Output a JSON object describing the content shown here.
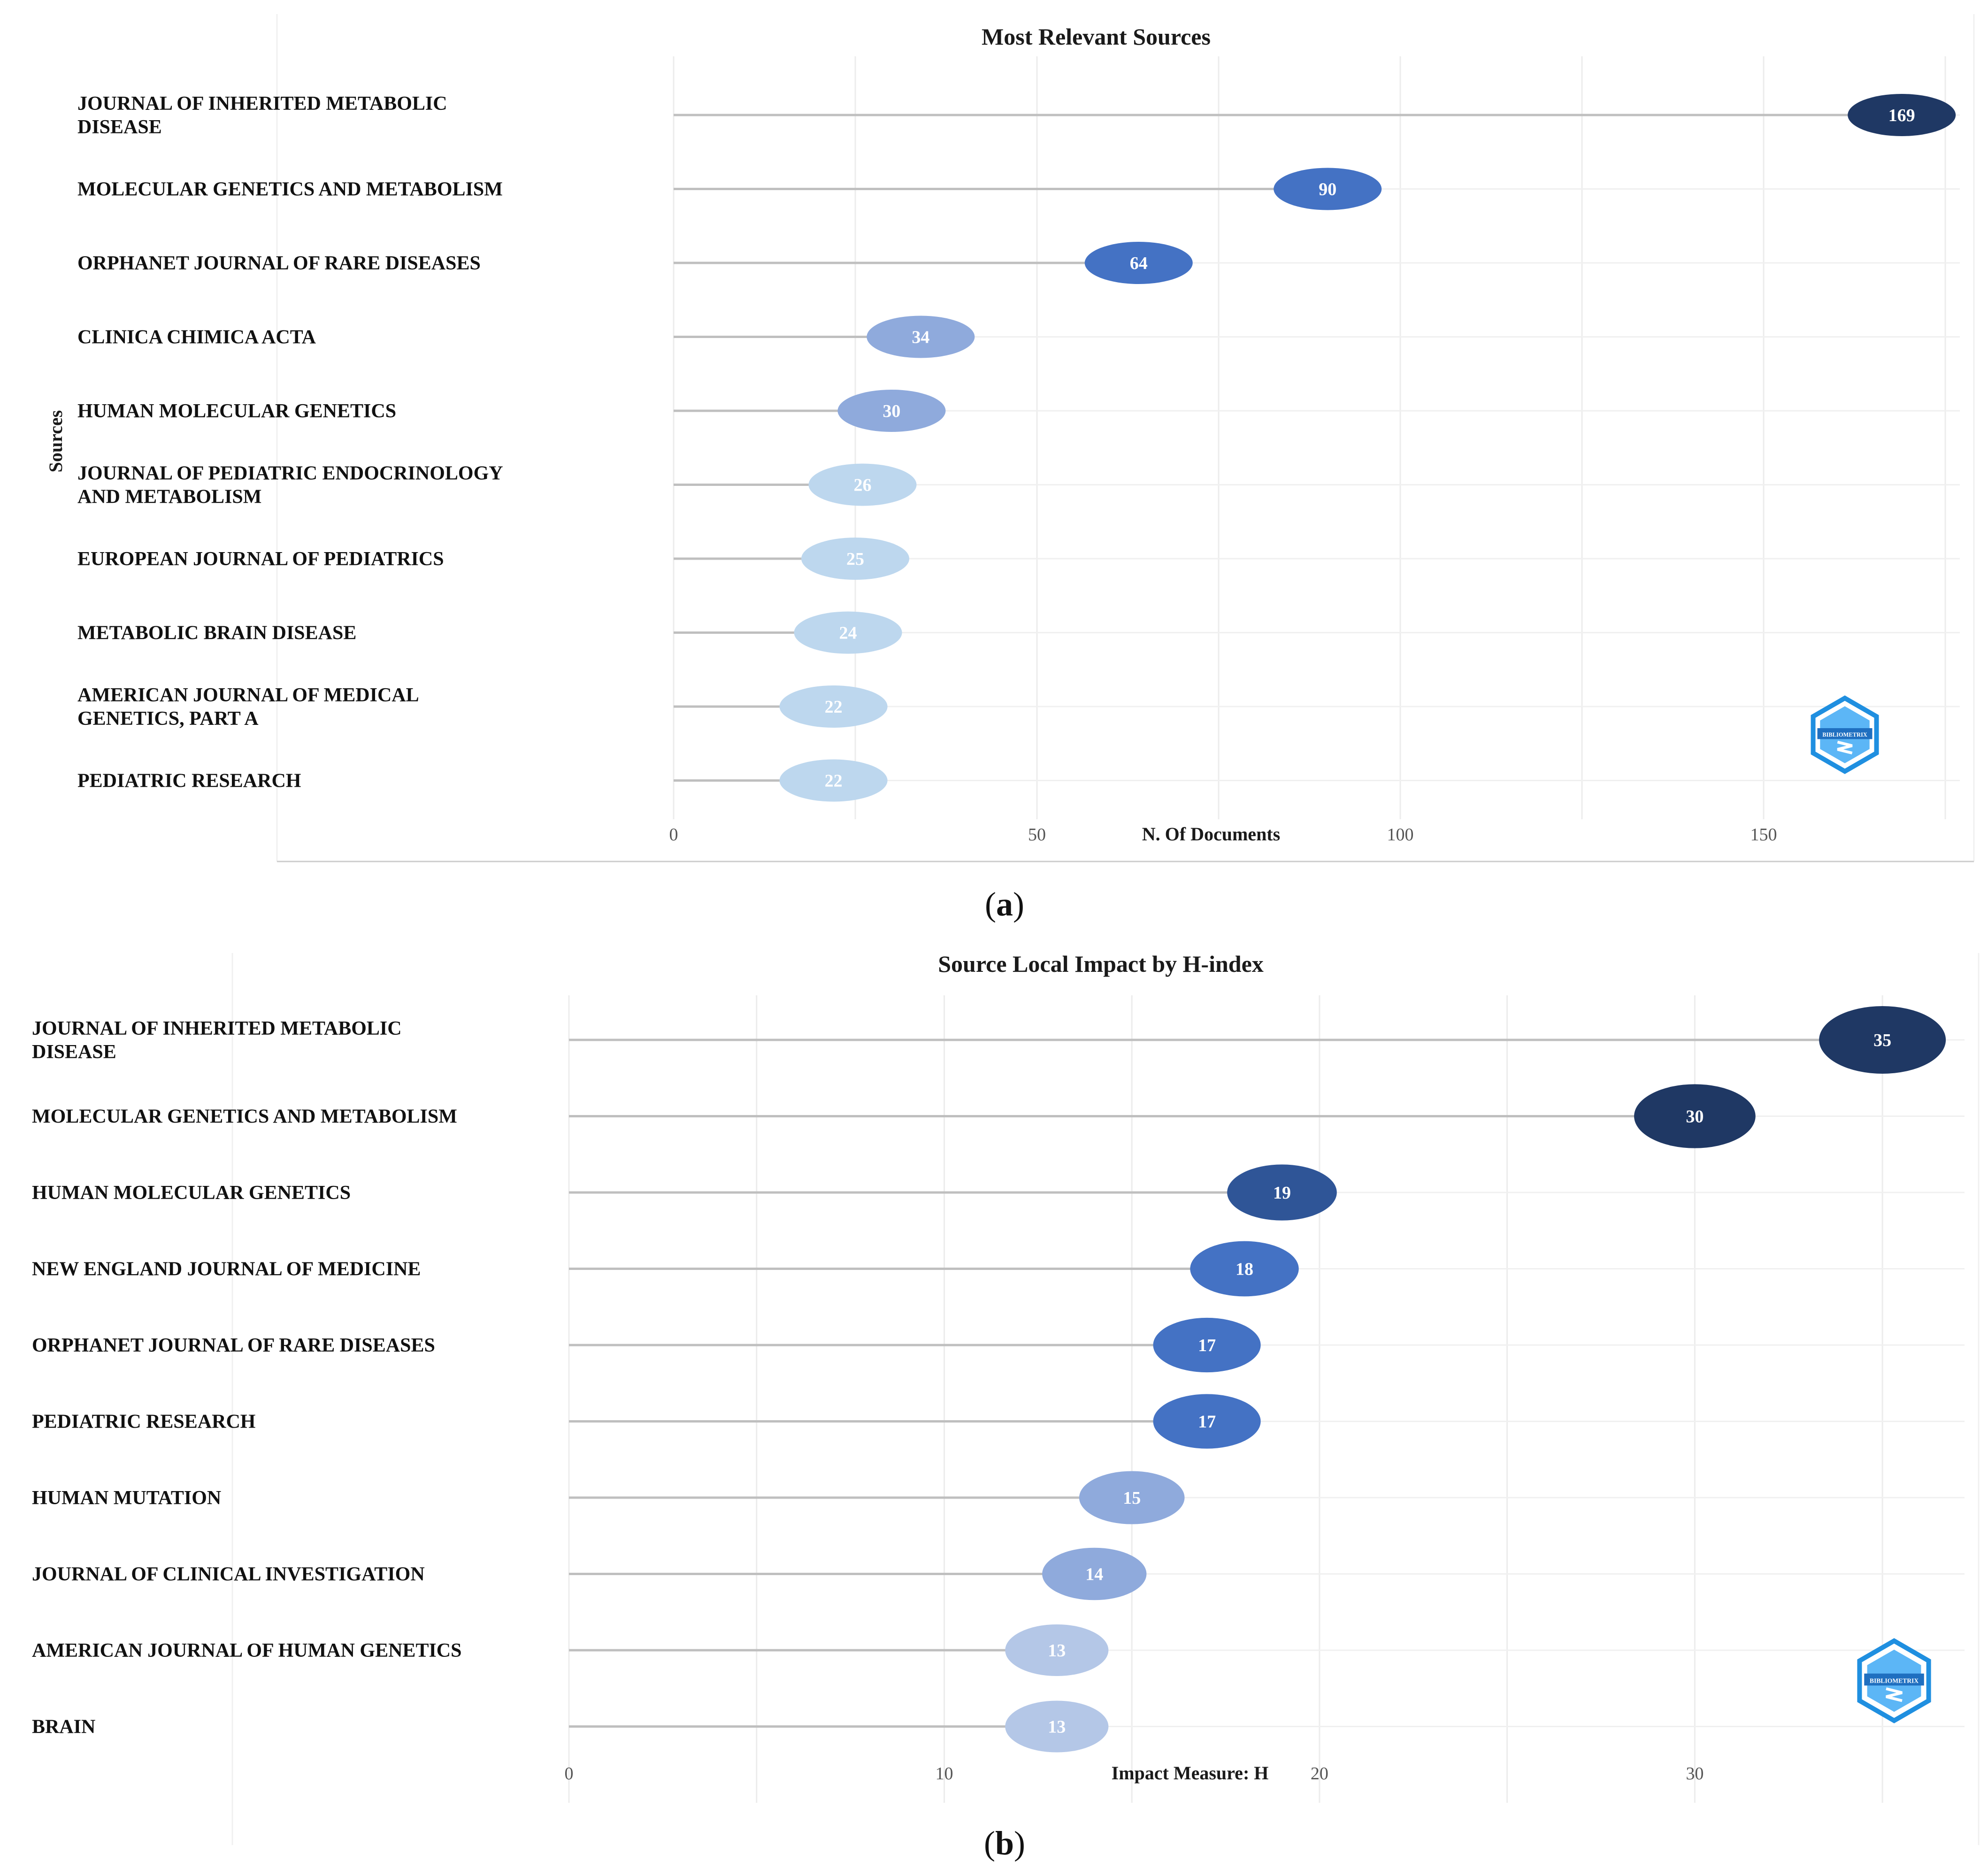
{
  "chart_data": [
    {
      "type": "lollipop",
      "panel": "a",
      "title": "Most Relevant Sources",
      "xlabel": "N. Of Documents",
      "ylabel": "Sources",
      "xlim": [
        0,
        177
      ],
      "xticks": [
        0,
        50,
        100,
        150
      ],
      "categories": [
        "JOURNAL OF INHERITED METABOLIC DISEASE",
        "MOLECULAR GENETICS AND METABOLISM",
        "ORPHANET JOURNAL OF RARE DISEASES",
        "CLINICA CHIMICA ACTA",
        "HUMAN MOLECULAR GENETICS",
        "JOURNAL OF PEDIATRIC ENDOCRINOLOGY AND METABOLISM",
        "EUROPEAN JOURNAL OF PEDIATRICS",
        "METABOLIC BRAIN DISEASE",
        "AMERICAN JOURNAL OF MEDICAL GENETICS, PART A",
        "PEDIATRIC RESEARCH"
      ],
      "values": [
        169,
        90,
        64,
        34,
        30,
        26,
        25,
        24,
        22,
        22
      ],
      "colors": [
        "#1f3864",
        "#4472c4",
        "#4472c4",
        "#8faadc",
        "#8faadc",
        "#bdd7ee",
        "#bdd7ee",
        "#bdd7ee",
        "#bdd7ee",
        "#bdd7ee"
      ],
      "logo_icon": "bibliometrix-logo-icon",
      "logo_text": "BIBLIOMETRIX"
    },
    {
      "type": "lollipop",
      "panel": "b",
      "title": "Source Local Impact by H-index",
      "xlabel": "Impact Measure: H",
      "ylabel": "",
      "xlim": [
        0,
        37
      ],
      "xticks": [
        0,
        10,
        20,
        30
      ],
      "categories": [
        "JOURNAL OF INHERITED METABOLIC DISEASE",
        "MOLECULAR GENETICS AND METABOLISM",
        "HUMAN MOLECULAR GENETICS",
        "NEW ENGLAND JOURNAL OF MEDICINE",
        "ORPHANET JOURNAL OF RARE DISEASES",
        "PEDIATRIC RESEARCH",
        "HUMAN MUTATION",
        "JOURNAL OF CLINICAL INVESTIGATION",
        "AMERICAN JOURNAL OF HUMAN GENETICS",
        "BRAIN"
      ],
      "values": [
        35,
        30,
        19,
        18,
        17,
        17,
        15,
        14,
        13,
        13
      ],
      "colors": [
        "#1f3864",
        "#1f3864",
        "#2f5597",
        "#4472c4",
        "#4472c4",
        "#4472c4",
        "#8faadc",
        "#8faadc",
        "#b4c7e7",
        "#b4c7e7"
      ],
      "logo_icon": "bibliometrix-logo-icon",
      "logo_text": "BIBLIOMETRIX"
    }
  ],
  "captions": {
    "a": {
      "open": "(",
      "letter": "a",
      "close": ")"
    },
    "b": {
      "open": "(",
      "letter": "b",
      "close": ")"
    }
  }
}
